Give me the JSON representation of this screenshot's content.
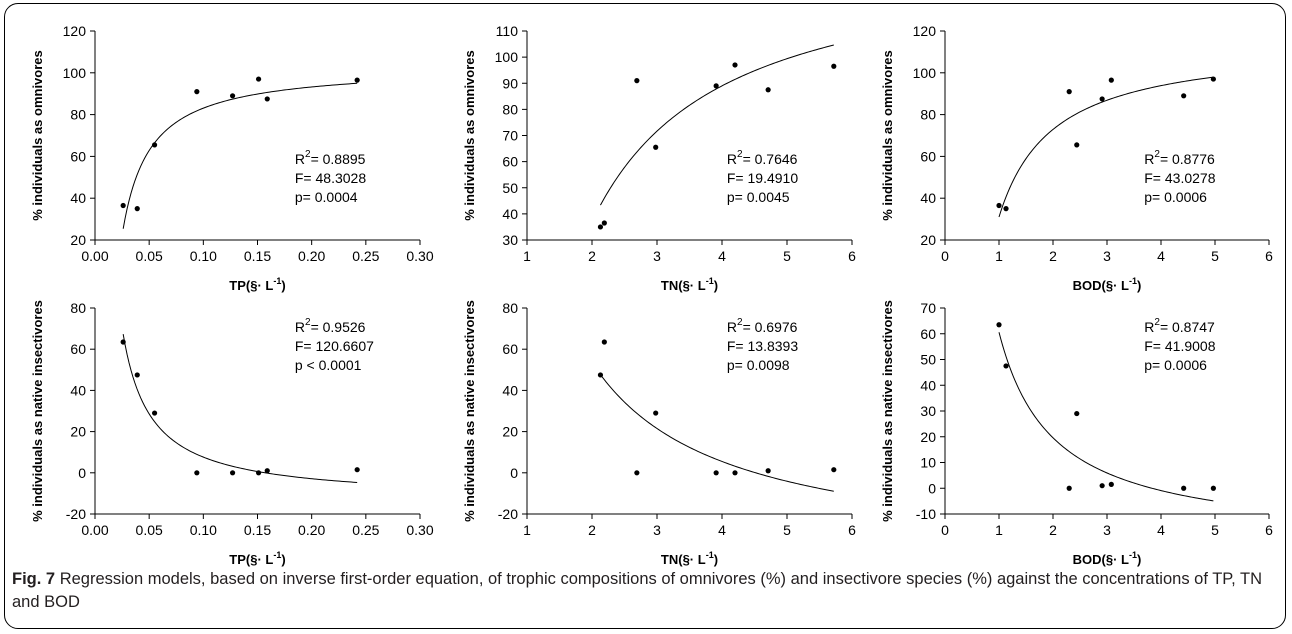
{
  "caption": {
    "label": "Fig. 7",
    "text": "Regression models, based on inverse first-order equation, of trophic compositions of omnivores (%) and insectivore species (%) against the concentrations of TP, TN and BOD"
  },
  "colors": {
    "axis": "#000000",
    "points": "#000000",
    "curve": "#000000",
    "background": "#ffffff"
  },
  "chart_data": [
    {
      "type": "scatter",
      "xlabel": "TP(§· L",
      "xlabel_sup": "-1",
      "xlabel_close": ")",
      "ylabel": "% individuals as omnivores",
      "xlim": [
        0.0,
        0.3
      ],
      "ylim": [
        20,
        120
      ],
      "xticks": [
        0.0,
        0.05,
        0.1,
        0.15,
        0.2,
        0.25,
        0.3
      ],
      "xtick_labels": [
        "0.00",
        "0.05",
        "0.10",
        "0.15",
        "0.20",
        "0.25",
        "0.30"
      ],
      "yticks": [
        20,
        40,
        60,
        80,
        100,
        120
      ],
      "ytick_labels": [
        "20",
        "40",
        "60",
        "80",
        "100",
        "120"
      ],
      "points": [
        [
          0.026,
          36.5
        ],
        [
          0.039,
          35
        ],
        [
          0.055,
          65.5
        ],
        [
          0.094,
          91
        ],
        [
          0.127,
          89
        ],
        [
          0.151,
          97
        ],
        [
          0.159,
          87.5
        ],
        [
          0.242,
          96.5
        ]
      ],
      "fit": {
        "a": 103.36,
        "b": -2.0271,
        "x_from": 0.026,
        "x_to": 0.242
      },
      "stats": [
        "R",
        "2",
        "= 0.8895",
        "F= 48.3028",
        "p= 0.0004"
      ],
      "stats_anchor": "lower-right"
    },
    {
      "type": "scatter",
      "xlabel": "TN(§· L",
      "xlabel_sup": "-1",
      "xlabel_close": ")",
      "ylabel": "% individuals as omnivores",
      "xlim": [
        1,
        6
      ],
      "ylim": [
        30,
        110
      ],
      "xticks": [
        1,
        2,
        3,
        4,
        5,
        6
      ],
      "xtick_labels": [
        "1",
        "2",
        "3",
        "4",
        "5",
        "6"
      ],
      "yticks": [
        30,
        40,
        50,
        60,
        70,
        80,
        90,
        100,
        110
      ],
      "ytick_labels": [
        "30",
        "40",
        "50",
        "60",
        "70",
        "80",
        "90",
        "100",
        "110"
      ],
      "points": [
        [
          2.13,
          35
        ],
        [
          2.19,
          36.5
        ],
        [
          2.69,
          91
        ],
        [
          2.98,
          65.5
        ],
        [
          3.91,
          89
        ],
        [
          4.2,
          97
        ],
        [
          4.71,
          87.5
        ],
        [
          5.72,
          96.5
        ]
      ],
      "fit": {
        "a": 141.0,
        "b": -208.0,
        "x_from": 2.13,
        "x_to": 5.72
      },
      "stats": [
        "R",
        "2",
        "= 0.7646",
        "F= 19.4910",
        "p= 0.0045"
      ],
      "stats_anchor": "lower-right"
    },
    {
      "type": "scatter",
      "xlabel": "BOD(§· L",
      "xlabel_sup": "-1",
      "xlabel_close": ")",
      "ylabel": "% individuals as omnivores",
      "xlim": [
        0,
        6
      ],
      "ylim": [
        20,
        120
      ],
      "xticks": [
        0,
        1,
        2,
        3,
        4,
        5,
        6
      ],
      "xtick_labels": [
        "0",
        "1",
        "2",
        "3",
        "4",
        "5",
        "6"
      ],
      "yticks": [
        20,
        40,
        60,
        80,
        100,
        120
      ],
      "ytick_labels": [
        "20",
        "40",
        "60",
        "80",
        "100",
        "120"
      ],
      "points": [
        [
          1.0,
          36.5
        ],
        [
          1.13,
          35
        ],
        [
          2.3,
          91
        ],
        [
          2.44,
          65.5
        ],
        [
          2.91,
          87.5
        ],
        [
          3.08,
          96.5
        ],
        [
          4.42,
          89
        ],
        [
          4.97,
          97
        ]
      ],
      "fit": {
        "a": 114.8,
        "b": -83.8,
        "x_from": 1.0,
        "x_to": 4.97
      },
      "stats": [
        "R",
        "2",
        "= 0.8776",
        "F= 43.0278",
        "p= 0.0006"
      ],
      "stats_anchor": "lower-right"
    },
    {
      "type": "scatter",
      "xlabel": "TP(§· L",
      "xlabel_sup": "-1",
      "xlabel_close": ")",
      "ylabel": "% individuals as native insectivores",
      "xlim": [
        0.0,
        0.3
      ],
      "ylim": [
        -20,
        80
      ],
      "xticks": [
        0.0,
        0.05,
        0.1,
        0.15,
        0.2,
        0.25,
        0.3
      ],
      "xtick_labels": [
        "0.00",
        "0.05",
        "0.10",
        "0.15",
        "0.20",
        "0.25",
        "0.30"
      ],
      "yticks": [
        -20,
        0,
        20,
        40,
        60,
        80
      ],
      "ytick_labels": [
        "-20",
        "0",
        "20",
        "40",
        "60",
        "80"
      ],
      "points": [
        [
          0.026,
          63.5
        ],
        [
          0.039,
          47.5
        ],
        [
          0.055,
          29
        ],
        [
          0.094,
          0
        ],
        [
          0.127,
          0
        ],
        [
          0.151,
          0
        ],
        [
          0.159,
          1
        ],
        [
          0.242,
          1.5
        ]
      ],
      "fit": {
        "a": -13.355,
        "b": 2.0975,
        "x_from": 0.026,
        "x_to": 0.242
      },
      "stats": [
        "R",
        "2",
        "= 0.9526",
        "F= 120.6607",
        "p < 0.0001"
      ],
      "stats_anchor": "upper-right"
    },
    {
      "type": "scatter",
      "xlabel": "TN(§· L",
      "xlabel_sup": "-1",
      "xlabel_close": ")",
      "ylabel": "% individuals as native insectivores",
      "xlim": [
        1,
        6
      ],
      "ylim": [
        -20,
        80
      ],
      "xticks": [
        1,
        2,
        3,
        4,
        5,
        6
      ],
      "xtick_labels": [
        "1",
        "2",
        "3",
        "4",
        "5",
        "6"
      ],
      "yticks": [
        -20,
        0,
        20,
        40,
        60,
        80
      ],
      "ytick_labels": [
        "-20",
        "0",
        "20",
        "40",
        "60",
        "80"
      ],
      "points": [
        [
          2.13,
          47.5
        ],
        [
          2.19,
          63.5
        ],
        [
          2.69,
          0
        ],
        [
          2.98,
          29
        ],
        [
          3.91,
          0
        ],
        [
          4.2,
          0
        ],
        [
          4.71,
          1
        ],
        [
          5.72,
          1.5
        ]
      ],
      "fit": {
        "a": -42.5,
        "b": 192.0,
        "x_from": 2.13,
        "x_to": 5.72
      },
      "stats": [
        "R",
        "2",
        "= 0.6976",
        "F= 13.8393",
        "p= 0.0098"
      ],
      "stats_anchor": "upper-right"
    },
    {
      "type": "scatter",
      "xlabel": "BOD(§· L",
      "xlabel_sup": "-1",
      "xlabel_close": ")",
      "ylabel": "% individuals as native insectivores",
      "xlim": [
        0,
        6
      ],
      "ylim": [
        -10,
        70
      ],
      "xticks": [
        0,
        1,
        2,
        3,
        4,
        5,
        6
      ],
      "xtick_labels": [
        "0",
        "1",
        "2",
        "3",
        "4",
        "5",
        "6"
      ],
      "yticks": [
        -10,
        0,
        10,
        20,
        30,
        40,
        50,
        60,
        70
      ],
      "ytick_labels": [
        "-10",
        "0",
        "10",
        "20",
        "30",
        "40",
        "50",
        "60",
        "70"
      ],
      "points": [
        [
          1.0,
          63.5
        ],
        [
          1.13,
          47.5
        ],
        [
          2.3,
          0
        ],
        [
          2.44,
          29
        ],
        [
          2.91,
          1
        ],
        [
          3.08,
          1.5
        ],
        [
          4.42,
          0
        ],
        [
          4.97,
          0
        ]
      ],
      "fit": {
        "a": -21.4,
        "b": 82.0,
        "x_from": 1.0,
        "x_to": 4.97
      },
      "stats": [
        "R",
        "2",
        "= 0.8747",
        "F= 41.9008",
        "p= 0.0006"
      ],
      "stats_anchor": "upper-right"
    }
  ]
}
